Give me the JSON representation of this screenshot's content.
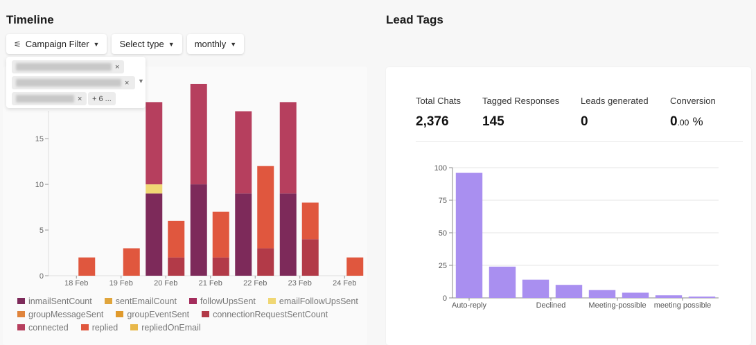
{
  "timeline": {
    "title": "Timeline",
    "filters": [
      {
        "label": "Campaign Filter",
        "icon": "sliders-icon"
      },
      {
        "label": "Select type"
      },
      {
        "label": "monthly"
      }
    ],
    "selected_more": "+ 6 ..."
  },
  "lead_tags": {
    "title": "Lead Tags",
    "stats": [
      {
        "label": "Total Chats",
        "value": "2,376"
      },
      {
        "label": "Tagged Responses",
        "value": "145"
      },
      {
        "label": "Leads generated",
        "value": "0"
      },
      {
        "label": "Conversion",
        "value_int": "0",
        "value_dec": ".00",
        "value_unit": "%"
      }
    ]
  },
  "chart_data": [
    {
      "type": "bar",
      "stacked": true,
      "ylim": [
        0,
        20
      ],
      "yticks": [
        0,
        5,
        10,
        15
      ],
      "grid": false,
      "legend_position": "bottom",
      "categories": [
        "18 Feb",
        "19 Feb",
        "20 Feb",
        "21 Feb",
        "22 Feb",
        "23 Feb",
        "24 Feb"
      ],
      "groups": [
        {
          "segments": [
            {
              "series": "inmailSentCount",
              "color": "#7d2a5a",
              "values": [
                0,
                0,
                9,
                10,
                9,
                9,
                0
              ]
            },
            {
              "series": "emailFollowUpsSent",
              "color": "#f0d774",
              "values": [
                0,
                0,
                1,
                0,
                0,
                0,
                0
              ]
            },
            {
              "series": "connected",
              "color": "#b63f5e",
              "values": [
                0,
                0,
                9,
                11,
                9,
                10,
                0
              ]
            }
          ]
        },
        {
          "segments": [
            {
              "series": "connectionRequestSentCount",
              "color": "#b23a48",
              "values": [
                0,
                0,
                2,
                2,
                3,
                4,
                0
              ]
            },
            {
              "series": "replied",
              "color": "#e0573e",
              "values": [
                2,
                3,
                4,
                5,
                9,
                4,
                2
              ]
            }
          ]
        }
      ],
      "legend": [
        [
          {
            "name": "inmailSentCount",
            "color": "#7d2a5a"
          },
          {
            "name": "sentEmailCount",
            "color": "#e0a53c"
          },
          {
            "name": "followUpsSent",
            "color": "#a42d5c"
          },
          {
            "name": "emailFollowUpsSent",
            "color": "#f0d774"
          }
        ],
        [
          {
            "name": "groupMessageSent",
            "color": "#e0843c"
          },
          {
            "name": "groupEventSent",
            "color": "#e09a2c"
          },
          {
            "name": "connectionRequestSentCount",
            "color": "#b23a48"
          }
        ],
        [
          {
            "name": "connected",
            "color": "#b63f5e"
          },
          {
            "name": "replied",
            "color": "#e0573e"
          },
          {
            "name": "repliedOnEmail",
            "color": "#e8b84a"
          }
        ]
      ]
    },
    {
      "type": "bar",
      "ylim": [
        0,
        100
      ],
      "yticks": [
        0,
        25,
        50,
        75,
        100
      ],
      "grid": true,
      "color": "#a98ff0",
      "values": [
        96,
        24,
        14,
        10,
        6,
        4,
        2,
        1
      ],
      "tick_labels": [
        "Auto-reply",
        "Declined",
        "Meeting-possible",
        "meeting possible"
      ]
    }
  ]
}
